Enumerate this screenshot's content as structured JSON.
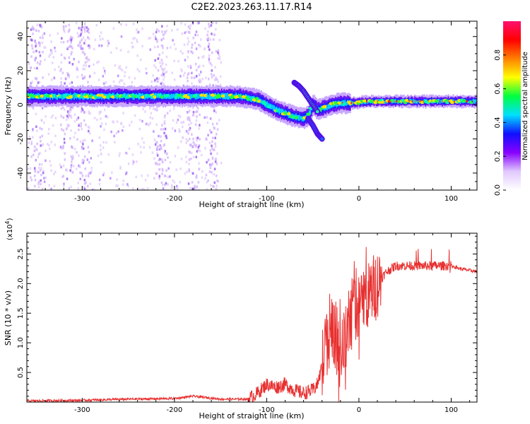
{
  "title": "C2E2.2023.263.11.17.R14",
  "chart_data": [
    {
      "type": "heatmap",
      "xlabel": "Height of straight line (km)",
      "ylabel": "Frequency (Hz)",
      "xlim": [
        -360,
        128
      ],
      "ylim": [
        -50,
        49
      ],
      "xticks": [
        -300,
        -200,
        -100,
        0,
        100
      ],
      "yticks": [
        -40,
        -20,
        0,
        20,
        40
      ],
      "colorbar": {
        "label": "Normalized spectral amplitude",
        "range": [
          0,
          1
        ],
        "ticks": [
          "0.0",
          "0.2",
          "0.4",
          "0.6",
          "0.8"
        ],
        "colors": [
          "#ffffff",
          "#e0c8ff",
          "#8800ff",
          "#1010ff",
          "#00e0ff",
          "#00ff40",
          "#ffff00",
          "#ff8000",
          "#ff0000",
          "#ff1070"
        ]
      },
      "ridge": {
        "x": [
          -360,
          -300,
          -250,
          -200,
          -150,
          -130,
          -110,
          -100,
          -90,
          -80,
          -70,
          -60,
          -55,
          -50,
          -45,
          -40,
          -35,
          -30,
          -20,
          -10,
          0,
          20,
          60,
          80,
          100,
          128
        ],
        "y": [
          5,
          5,
          5,
          5,
          5,
          5,
          3,
          0,
          -3,
          -5,
          -7,
          -8,
          -6,
          0,
          -3,
          -2,
          -1,
          0,
          1,
          1,
          1.5,
          2,
          2,
          2,
          2,
          2
        ]
      },
      "branch": {
        "x": [
          -70,
          -65,
          -60,
          -55,
          -50,
          -45
        ],
        "y": [
          13,
          11,
          8,
          4,
          0,
          -4
        ]
      },
      "lower_branch": {
        "x": [
          -55,
          -50,
          -45,
          -40
        ],
        "y": [
          -8,
          -12,
          -17,
          -20
        ]
      }
    },
    {
      "type": "line",
      "xlabel": "Height of straight line (km)",
      "ylabel": "SNR (10 * v/v)",
      "scale_label": "(x10",
      "scale_exp": "4",
      "scale_close": ")",
      "xlim": [
        -360,
        128
      ],
      "ylim": [
        0,
        2.85
      ],
      "xticks": [
        -300,
        -200,
        -100,
        0,
        100
      ],
      "yticks": [
        "0.5",
        "1.0",
        "1.5",
        "2.0",
        "2.5"
      ],
      "series": [
        {
          "color": "#e83030",
          "x": [
            -360,
            -300,
            -250,
            -200,
            -180,
            -150,
            -120,
            -110,
            -100,
            -90,
            -80,
            -70,
            -60,
            -50,
            -45,
            -40,
            -35,
            -30,
            -25,
            -20,
            -15,
            -10,
            -5,
            0,
            5,
            10,
            20,
            30,
            40,
            60,
            80,
            90,
            100,
            110,
            128
          ],
          "y": [
            0.02,
            0.03,
            0.05,
            0.06,
            0.1,
            0.05,
            0.05,
            0.15,
            0.3,
            0.25,
            0.3,
            0.2,
            0.15,
            0.2,
            0.3,
            0.6,
            1.0,
            1.4,
            1.1,
            0.8,
            1.0,
            1.4,
            1.8,
            1.6,
            1.7,
            1.8,
            2.0,
            2.2,
            2.3,
            2.3,
            2.3,
            2.3,
            2.3,
            2.25,
            2.2
          ]
        }
      ]
    }
  ]
}
